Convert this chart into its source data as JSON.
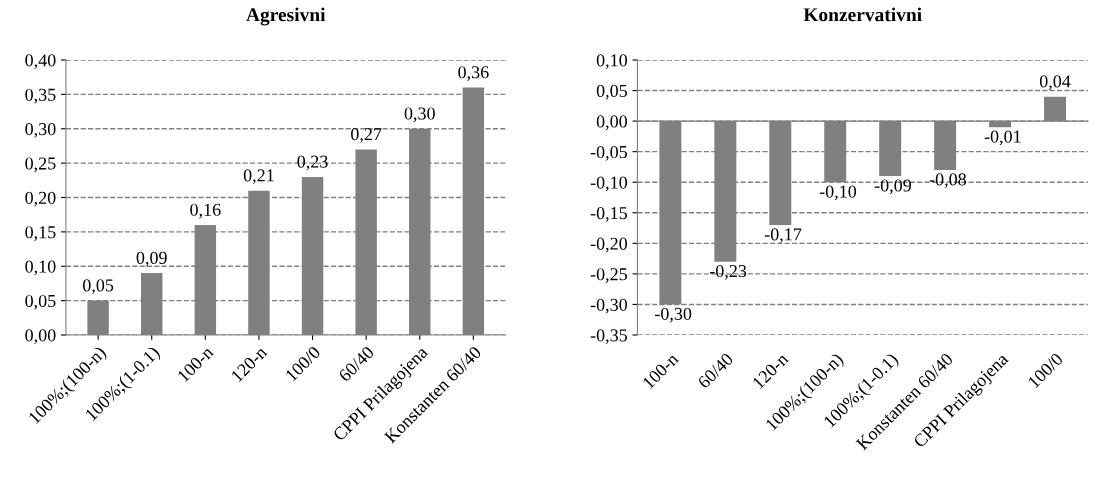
{
  "chart_data": [
    {
      "type": "bar",
      "title": "Agresivni",
      "categories": [
        "100%;(100-n)",
        "100%;(1-0.1)",
        "100-n",
        "120-n",
        "100/0",
        "60/40",
        "CPPI Prilagojena",
        "Konstanten 60/40"
      ],
      "values": [
        0.05,
        0.09,
        0.16,
        0.21,
        0.23,
        0.27,
        0.3,
        0.36
      ],
      "color": "#808080",
      "value_labels": [
        "0,05",
        "0,09",
        "0,16",
        "0,21",
        "0,23",
        "0,27",
        "0,30",
        "0,36"
      ],
      "ylim": [
        0,
        0.4
      ],
      "yticks": [
        {
          "value": 0,
          "label": "0,00"
        },
        {
          "value": 0.05,
          "label": "0,05"
        },
        {
          "value": 0.1,
          "label": "0,10"
        },
        {
          "value": 0.15,
          "label": "0,15"
        },
        {
          "value": 0.2,
          "label": "0,20"
        },
        {
          "value": 0.25,
          "label": "0,25"
        },
        {
          "value": 0.3,
          "label": "0,30"
        },
        {
          "value": 0.35,
          "label": "0,35"
        },
        {
          "value": 0.4,
          "label": "0,40"
        }
      ],
      "grid": "y",
      "line_style": "dashed"
    },
    {
      "type": "bar",
      "title": "Konzervativni",
      "categories": [
        "100-n",
        "60/40",
        "120-n",
        "100%;(100-n)",
        "100%;(1-0.1)",
        "Konstanten 60/40",
        "CPPI Prilagojena",
        "100/0"
      ],
      "values": [
        -0.3,
        -0.23,
        -0.17,
        -0.1,
        -0.09,
        -0.08,
        -0.01,
        0.04
      ],
      "color": "#808080",
      "value_labels": [
        "-0,30",
        "-0,23",
        "-0,17",
        "-0,10",
        "-0,09",
        "-0,08",
        "-0,01",
        "0,04"
      ],
      "ylim": [
        -0.35,
        0.1
      ],
      "yticks": [
        {
          "value": -0.35,
          "label": "-0,35"
        },
        {
          "value": -0.3,
          "label": "-0,30"
        },
        {
          "value": -0.25,
          "label": "-0,25"
        },
        {
          "value": -0.2,
          "label": "-0,20"
        },
        {
          "value": -0.15,
          "label": "-0,15"
        },
        {
          "value": -0.1,
          "label": "-0,10"
        },
        {
          "value": -0.05,
          "label": "-0,05"
        },
        {
          "value": 0,
          "label": "0,00"
        },
        {
          "value": 0.05,
          "label": "0,05"
        },
        {
          "value": 0.1,
          "label": "0,10"
        }
      ],
      "grid": "y",
      "line_style": "dashed"
    }
  ]
}
